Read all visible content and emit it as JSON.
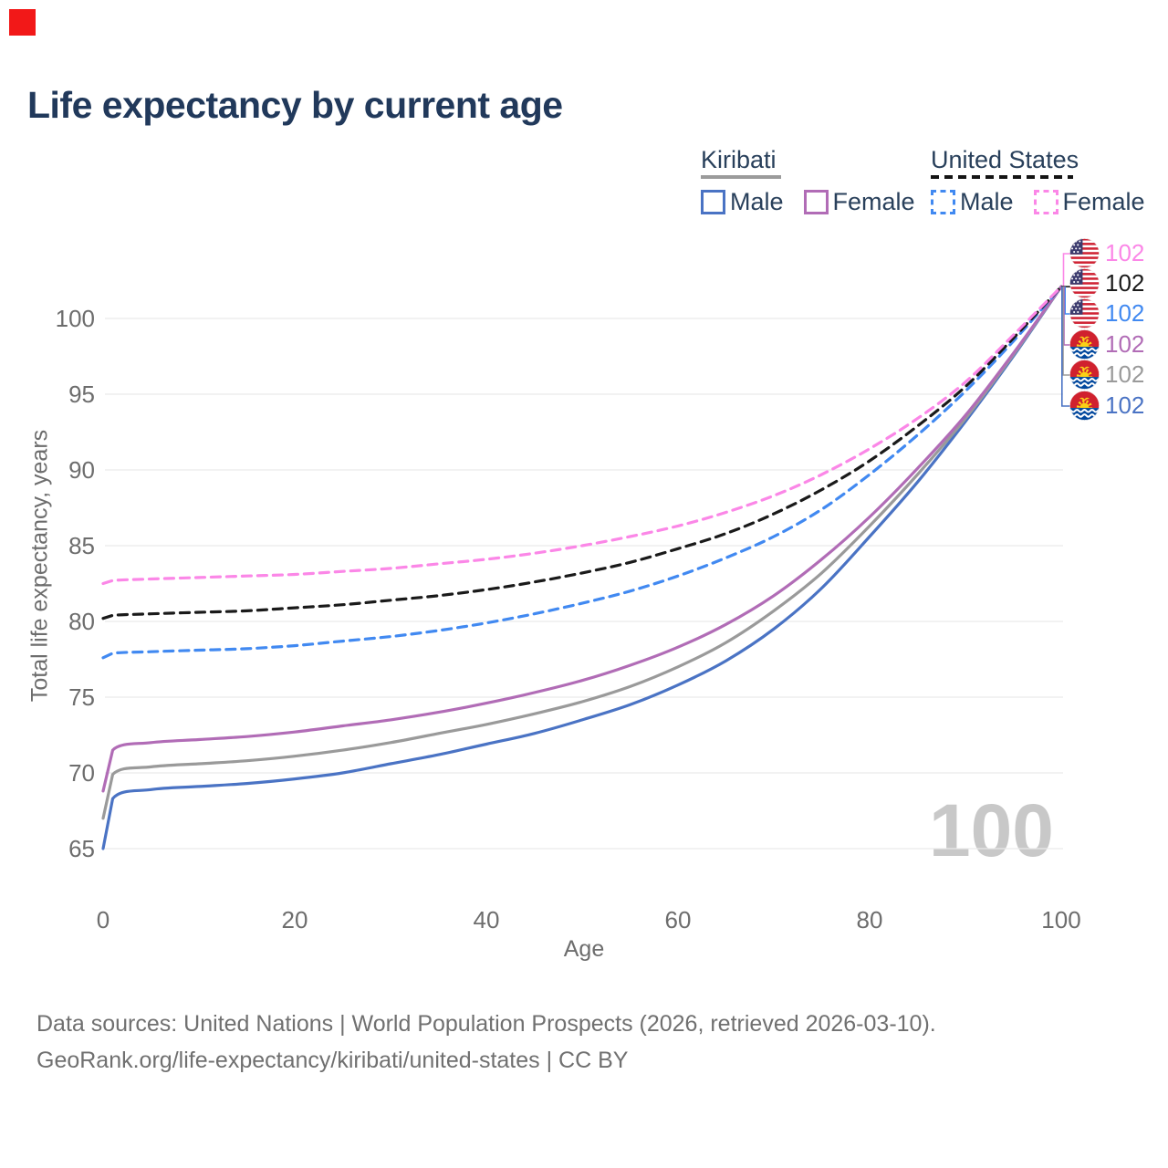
{
  "ui": {
    "marker_color": "#f21818",
    "title_color": "#21395b",
    "axis_text_color": "#6d6d6d",
    "grid_color": "#e9e9e9",
    "watermark": "100",
    "watermark_color": "#c8c8c8"
  },
  "title": "Life expectancy by current age",
  "legend": {
    "groups": [
      {
        "label": "Kiribati",
        "line_style": "solid",
        "underline_color": "#9b9b9b",
        "items": [
          {
            "label": "Male",
            "color": "#4a73c4"
          },
          {
            "label": "Female",
            "color": "#b16cb6"
          }
        ]
      },
      {
        "label": "United States",
        "line_style": "dashed",
        "underline_color": "#141414",
        "items": [
          {
            "label": "Male",
            "color": "#4189f1"
          },
          {
            "label": "Female",
            "color": "#fb87e7"
          }
        ]
      }
    ]
  },
  "chart_data": {
    "type": "line",
    "title": "Life expectancy by current age",
    "xlabel": "Age",
    "ylabel": "Total life expectancy, years",
    "xlim": [
      0,
      100
    ],
    "ylim": [
      63.5,
      103
    ],
    "x_ticks": [
      0,
      20,
      40,
      60,
      80,
      100
    ],
    "y_ticks": [
      65,
      70,
      75,
      80,
      85,
      90,
      95,
      100
    ],
    "grid": "horizontal-only",
    "legend_position": "top-right",
    "x_ages": [
      0,
      1,
      5,
      10,
      15,
      20,
      25,
      30,
      35,
      40,
      45,
      50,
      55,
      60,
      65,
      70,
      75,
      80,
      85,
      90,
      95,
      100
    ],
    "series": [
      {
        "id": "kiribati-male",
        "name": "Kiribati Male",
        "country": "Kiribati",
        "sex": "Male",
        "color": "#4a73c4",
        "dashed": false,
        "end_label": "102",
        "values": [
          65.0,
          68.3,
          68.9,
          69.1,
          69.3,
          69.6,
          70.0,
          70.6,
          71.2,
          71.9,
          72.6,
          73.5,
          74.5,
          75.8,
          77.4,
          79.5,
          82.2,
          85.6,
          89.2,
          93.2,
          97.5,
          102.1
        ]
      },
      {
        "id": "kiribati-both",
        "name": "Kiribati (both sexes)",
        "country": "Kiribati",
        "sex": "Both",
        "color": "#9a9a9a",
        "dashed": false,
        "end_label": "102",
        "values": [
          67.0,
          69.9,
          70.4,
          70.6,
          70.8,
          71.1,
          71.5,
          72.0,
          72.6,
          73.2,
          73.9,
          74.7,
          75.7,
          77.0,
          78.6,
          80.7,
          83.2,
          86.3,
          89.7,
          93.4,
          97.6,
          102.1
        ]
      },
      {
        "id": "kiribati-female",
        "name": "Kiribati Female",
        "country": "Kiribati",
        "sex": "Female",
        "color": "#b16cb6",
        "dashed": false,
        "end_label": "102",
        "values": [
          68.8,
          71.5,
          72.0,
          72.2,
          72.4,
          72.7,
          73.1,
          73.5,
          74.0,
          74.6,
          75.3,
          76.1,
          77.1,
          78.3,
          79.8,
          81.7,
          84.1,
          86.9,
          90.1,
          93.6,
          97.7,
          102.1
        ]
      },
      {
        "id": "us-male",
        "name": "United States Male",
        "country": "United States",
        "sex": "Male",
        "color": "#4189f1",
        "dashed": true,
        "end_label": "102",
        "values": [
          77.6,
          77.9,
          78.0,
          78.1,
          78.2,
          78.4,
          78.7,
          79.0,
          79.4,
          79.9,
          80.5,
          81.2,
          82.0,
          83.0,
          84.2,
          85.6,
          87.4,
          89.7,
          92.3,
          95.2,
          98.5,
          102.1
        ]
      },
      {
        "id": "us-both",
        "name": "United States (both sexes)",
        "country": "United States",
        "sex": "Both",
        "color": "#1a1a1a",
        "dashed": true,
        "end_label": "102",
        "values": [
          80.2,
          80.4,
          80.5,
          80.6,
          80.7,
          80.9,
          81.1,
          81.4,
          81.7,
          82.1,
          82.6,
          83.2,
          83.9,
          84.8,
          85.8,
          87.1,
          88.7,
          90.6,
          92.9,
          95.5,
          98.7,
          102.1
        ]
      },
      {
        "id": "us-female",
        "name": "United States Female",
        "country": "United States",
        "sex": "Female",
        "color": "#fb87e7",
        "dashed": true,
        "end_label": "102",
        "values": [
          82.5,
          82.7,
          82.8,
          82.9,
          83.0,
          83.1,
          83.3,
          83.5,
          83.8,
          84.1,
          84.5,
          85.0,
          85.6,
          86.3,
          87.2,
          88.3,
          89.7,
          91.4,
          93.4,
          95.8,
          98.9,
          102.1
        ]
      }
    ],
    "end_labels_order_top_to_bottom": [
      "us-female",
      "us-both",
      "us-male",
      "kiribati-female",
      "kiribati-both",
      "kiribati-male"
    ]
  },
  "footer": {
    "line1": "Data sources: United Nations | World Population Prospects (2026, retrieved 2026-03-10).",
    "line2": "GeoRank.org/life-expectancy/kiribati/united-states | CC BY"
  }
}
